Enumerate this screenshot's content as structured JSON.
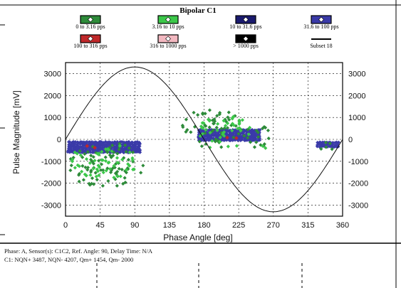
{
  "chart_data": {
    "type": "scatter",
    "title": "Bipolar C1",
    "xlabel": "Phase Angle [deg]",
    "ylabel": "Pulse Magnitude [mV]",
    "xlim": [
      0,
      360
    ],
    "ylim": [
      -3500,
      3500
    ],
    "xticks": [
      0,
      45,
      90,
      135,
      180,
      225,
      270,
      315,
      360
    ],
    "yticks": [
      -3000,
      -2000,
      -1000,
      0,
      1000,
      2000,
      3000
    ],
    "grid": true,
    "legend_position": "top",
    "legend": [
      {
        "label": "0 to 3.16 pps",
        "color": "#2e8b3a"
      },
      {
        "label": "3.16 to 10 pps",
        "color": "#3cc84a"
      },
      {
        "label": "10 to 31.6 pps",
        "color": "#1a1a6e"
      },
      {
        "label": "31.6 to 100 pps",
        "color": "#3a3aa8"
      },
      {
        "label": "100 to 316 pps",
        "color": "#c0282a"
      },
      {
        "label": "316 to 1000 pps",
        "color": "#f2b8c0"
      },
      {
        "label": "> 1000 pps",
        "color": "#000000"
      },
      {
        "label": "Subset 18",
        "color": "#000000"
      }
    ],
    "series": [
      {
        "name": "Subset 18",
        "type": "line",
        "shape": "sine",
        "amplitude": 3300,
        "period_deg": 360
      },
      {
        "name": "0 to 3.16 pps",
        "clusters": [
          {
            "x_range": [
              3,
              102
            ],
            "y_range": [
              -2300,
              -100
            ]
          },
          {
            "x_range": [
              150,
              230
            ],
            "y_range": [
              -400,
              1400
            ]
          },
          {
            "x_range": [
              232,
              268
            ],
            "y_range": [
              -400,
              800
            ]
          },
          {
            "x_range": [
              325,
              358
            ],
            "y_range": [
              -500,
              -100
            ]
          }
        ]
      },
      {
        "name": "3.16 to 10 pps",
        "clusters": [
          {
            "x_range": [
              5,
              95
            ],
            "y_range": [
              -1800,
              -200
            ]
          },
          {
            "x_range": [
              172,
              242
            ],
            "y_range": [
              -300,
              1100
            ]
          },
          {
            "x_range": [
              178,
              272
            ],
            "y_range": [
              -420,
              -280
            ]
          }
        ]
      },
      {
        "name": "31.6 to 100 pps",
        "bands": [
          {
            "x_range": [
              3,
              97
            ],
            "y_range": [
              -600,
              -150
            ]
          },
          {
            "x_range": [
              172,
              252
            ],
            "y_range": [
              -50,
              400
            ]
          },
          {
            "x_range": [
              327,
              355
            ],
            "y_range": [
              -350,
              -150
            ]
          }
        ]
      },
      {
        "name": "100 to 316 pps",
        "points": [
          [
            28,
            -300
          ],
          [
            38,
            -380
          ],
          [
            210,
            80
          ],
          [
            222,
            60
          ]
        ]
      }
    ]
  },
  "footer": {
    "line1": "Phase: A,   Sensor(s): C1C2,   Ref. Angle: 90,   Delay Time: N/A",
    "line2": "C1:  NQN+ 3487, NQN- 4207, Qm+ 1454, Qm- 2000"
  }
}
